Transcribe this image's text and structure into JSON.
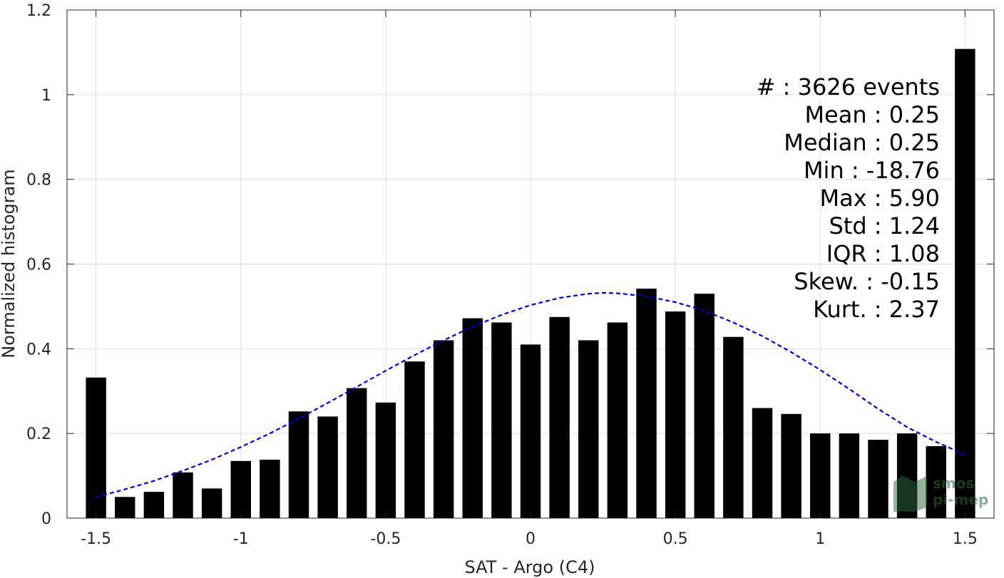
{
  "chart_data": {
    "type": "bar",
    "xlabel": "SAT - Argo (C4)",
    "ylabel": "Normalized histogram",
    "xlim": [
      -1.6,
      1.6
    ],
    "ylim": [
      0,
      1.2
    ],
    "grid": true,
    "x_ticks": [
      -1.5,
      -1,
      -0.5,
      0,
      0.5,
      1,
      1.5
    ],
    "x_tick_labels": [
      "-1.5",
      "-1",
      "-0.5",
      "0",
      "0.5",
      "1",
      "1.5"
    ],
    "y_ticks": [
      0,
      0.2,
      0.4,
      0.6,
      0.8,
      1,
      1.2
    ],
    "y_tick_labels": [
      "0",
      "0.2",
      "0.4",
      "0.6",
      "0.8",
      "1",
      "1.2"
    ],
    "bar_width": 0.07,
    "bars": {
      "x": [
        -1.5,
        -1.4,
        -1.3,
        -1.2,
        -1.1,
        -1.0,
        -0.9,
        -0.8,
        -0.7,
        -0.6,
        -0.5,
        -0.4,
        -0.3,
        -0.2,
        -0.1,
        0.0,
        0.1,
        0.2,
        0.3,
        0.4,
        0.5,
        0.6,
        0.7,
        0.8,
        0.9,
        1.0,
        1.1,
        1.2,
        1.3,
        1.4,
        1.5
      ],
      "values": [
        0.332,
        0.05,
        0.062,
        0.108,
        0.07,
        0.135,
        0.138,
        0.252,
        0.24,
        0.307,
        0.273,
        0.37,
        0.42,
        0.472,
        0.462,
        0.41,
        0.475,
        0.42,
        0.462,
        0.542,
        0.488,
        0.53,
        0.428,
        0.26,
        0.246,
        0.2,
        0.2,
        0.185,
        0.2,
        0.17,
        1.108
      ],
      "color": "#000000"
    },
    "fit_curve": {
      "style": "dashed",
      "color": "#0000cc",
      "x": [
        -1.5,
        -1.4,
        -1.3,
        -1.2,
        -1.1,
        -1.0,
        -0.9,
        -0.8,
        -0.7,
        -0.6,
        -0.5,
        -0.4,
        -0.3,
        -0.2,
        -0.1,
        0.0,
        0.1,
        0.2,
        0.25,
        0.3,
        0.4,
        0.5,
        0.6,
        0.7,
        0.8,
        0.9,
        1.0,
        1.1,
        1.2,
        1.3,
        1.4,
        1.5
      ],
      "y": [
        0.05,
        0.068,
        0.088,
        0.112,
        0.138,
        0.168,
        0.2,
        0.235,
        0.272,
        0.31,
        0.348,
        0.385,
        0.42,
        0.452,
        0.48,
        0.503,
        0.52,
        0.53,
        0.532,
        0.531,
        0.524,
        0.51,
        0.49,
        0.462,
        0.43,
        0.392,
        0.35,
        0.305,
        0.258,
        0.215,
        0.18,
        0.15
      ]
    },
    "stats": [
      {
        "label": "#  : 3626 events"
      },
      {
        "label": "Mean : 0.25"
      },
      {
        "label": "Median : 0.25"
      },
      {
        "label": "Min : -18.76"
      },
      {
        "label": "Max : 5.90"
      },
      {
        "label": "Std : 1.24"
      },
      {
        "label": "IQR : 1.08"
      },
      {
        "label": "Skew. : -0.15"
      },
      {
        "label": "Kurt. : 2.37"
      }
    ]
  },
  "logo": {
    "line1": "smos",
    "line2": "pi-mep"
  }
}
